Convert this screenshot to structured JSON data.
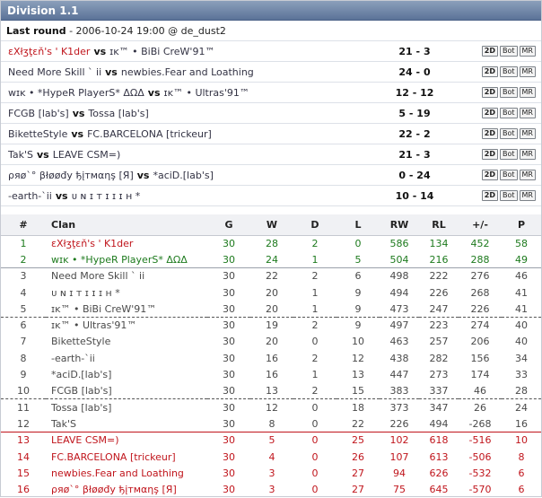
{
  "division": {
    "title": "Division 1.1"
  },
  "last_round": {
    "label": "Last round",
    "info": " - 2006-10-24 19:00 @ de_dust2"
  },
  "match_buttons": [
    "2D",
    "Bot",
    "MR"
  ],
  "vs_label": "vs",
  "matches": [
    {
      "team1": "εXłʒţεň's ' K1der",
      "team2": "ɪᴋ™ • BiBi CreW'91™",
      "score": "21 - 3"
    },
    {
      "team1": "Need More Skill ` ii",
      "team2": "newbies.Fear and Loathing",
      "score": "24 - 0"
    },
    {
      "team1": "wɪᴋ • *HypeR PlayerS* ΔΩΔ",
      "team2": "ɪᴋ™ • Ultras'91™",
      "score": "12 - 12"
    },
    {
      "team1": "FCGB [lab's]",
      "team2": "Tossa [lab's]",
      "score": "5 - 19"
    },
    {
      "team1": "BiketteStyle",
      "team2": "FC.BARCELONA [trickeur]",
      "score": "22 - 2"
    },
    {
      "team1": "Tak'S",
      "team2": "LEAVE CSM=)",
      "score": "21 - 3"
    },
    {
      "team1": "ρяø`° βłøøđy ђįтмαηş [Я]",
      "team2": "*aciD.[lab's]",
      "score": "0 - 24"
    },
    {
      "team1": "-earth-`ii",
      "team2": "ᴜ ɴ ɪ ᴛ ɪ ɪ ɪ ʜ *",
      "score": "10 - 14"
    }
  ],
  "standings": {
    "headers": [
      "#",
      "Clan",
      "G",
      "W",
      "D",
      "L",
      "RW",
      "RL",
      "+/-",
      "P"
    ],
    "rows": [
      {
        "pos": "1",
        "clan": "εXłʒţεň's ' K1der",
        "g": "30",
        "w": "28",
        "d": "2",
        "l": "0",
        "rw": "586",
        "rl": "134",
        "diff": "452",
        "p": "58"
      },
      {
        "pos": "2",
        "clan": "wɪᴋ • *HypeR PlayerS* ΔΩΔ",
        "g": "30",
        "w": "24",
        "d": "1",
        "l": "5",
        "rw": "504",
        "rl": "216",
        "diff": "288",
        "p": "49"
      },
      {
        "pos": "3",
        "clan": "Need More Skill ` ii",
        "g": "30",
        "w": "22",
        "d": "2",
        "l": "6",
        "rw": "498",
        "rl": "222",
        "diff": "276",
        "p": "46"
      },
      {
        "pos": "4",
        "clan": "ᴜ ɴ ɪ ᴛ ɪ ɪ ɪ ʜ *",
        "g": "30",
        "w": "20",
        "d": "1",
        "l": "9",
        "rw": "494",
        "rl": "226",
        "diff": "268",
        "p": "41"
      },
      {
        "pos": "5",
        "clan": "ɪᴋ™ • BiBi CreW'91™",
        "g": "30",
        "w": "20",
        "d": "1",
        "l": "9",
        "rw": "473",
        "rl": "247",
        "diff": "226",
        "p": "41"
      },
      {
        "pos": "6",
        "clan": "ɪᴋ™ • Ultras'91™",
        "g": "30",
        "w": "19",
        "d": "2",
        "l": "9",
        "rw": "497",
        "rl": "223",
        "diff": "274",
        "p": "40"
      },
      {
        "pos": "7",
        "clan": "BiketteStyle",
        "g": "30",
        "w": "20",
        "d": "0",
        "l": "10",
        "rw": "463",
        "rl": "257",
        "diff": "206",
        "p": "40"
      },
      {
        "pos": "8",
        "clan": "-earth-`ii",
        "g": "30",
        "w": "16",
        "d": "2",
        "l": "12",
        "rw": "438",
        "rl": "282",
        "diff": "156",
        "p": "34"
      },
      {
        "pos": "9",
        "clan": "*aciD.[lab's]",
        "g": "30",
        "w": "16",
        "d": "1",
        "l": "13",
        "rw": "447",
        "rl": "273",
        "diff": "174",
        "p": "33"
      },
      {
        "pos": "10",
        "clan": "FCGB [lab's]",
        "g": "30",
        "w": "13",
        "d": "2",
        "l": "15",
        "rw": "383",
        "rl": "337",
        "diff": "46",
        "p": "28"
      },
      {
        "pos": "11",
        "clan": "Tossa [lab's]",
        "g": "30",
        "w": "12",
        "d": "0",
        "l": "18",
        "rw": "373",
        "rl": "347",
        "diff": "26",
        "p": "24"
      },
      {
        "pos": "12",
        "clan": "Tak'S",
        "g": "30",
        "w": "8",
        "d": "0",
        "l": "22",
        "rw": "226",
        "rl": "494",
        "diff": "-268",
        "p": "16"
      },
      {
        "pos": "13",
        "clan": "LEAVE CSM=)",
        "g": "30",
        "w": "5",
        "d": "0",
        "l": "25",
        "rw": "102",
        "rl": "618",
        "diff": "-516",
        "p": "10"
      },
      {
        "pos": "14",
        "clan": "FC.BARCELONA [trickeur]",
        "g": "30",
        "w": "4",
        "d": "0",
        "l": "26",
        "rw": "107",
        "rl": "613",
        "diff": "-506",
        "p": "8"
      },
      {
        "pos": "15",
        "clan": "newbies.Fear and Loathing",
        "g": "30",
        "w": "3",
        "d": "0",
        "l": "27",
        "rw": "94",
        "rl": "626",
        "diff": "-532",
        "p": "6"
      },
      {
        "pos": "16",
        "clan": "ρяø`° βłøøđy ђįтмαηş [Я]",
        "g": "30",
        "w": "3",
        "d": "0",
        "l": "27",
        "rw": "75",
        "rl": "645",
        "diff": "-570",
        "p": "6"
      }
    ]
  },
  "colors": {
    "header_bg": "#5b7398",
    "promotion": "#1d7a1d",
    "relegation": "#c0151c",
    "leader_name": "#c0151c"
  }
}
